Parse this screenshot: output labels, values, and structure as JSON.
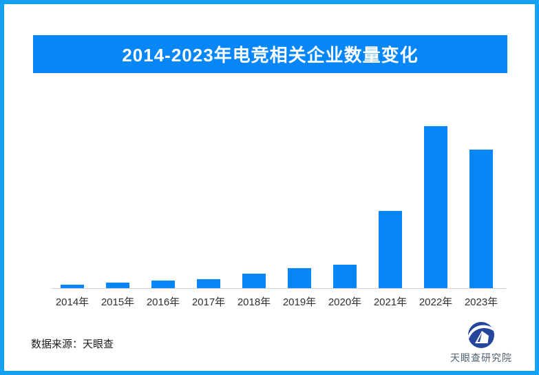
{
  "page": {
    "background": "#ffffff",
    "border_color": "#14a1f2"
  },
  "header": {
    "title": "2014-2023年电竞相关企业数量变化",
    "banner_color": "#0787f7",
    "title_color": "#ffffff"
  },
  "chart_data": {
    "type": "bar",
    "title": "2014-2023年电竞相关企业数量变化",
    "categories": [
      "2014年",
      "2015年",
      "2016年",
      "2017年",
      "2018年",
      "2019年",
      "2020年",
      "2021年",
      "2022年",
      "2023年"
    ],
    "values": [
      2.1,
      3.4,
      4.7,
      5.5,
      8.9,
      12.3,
      14.5,
      47.7,
      100,
      85.5
    ],
    "ylim": [
      0,
      100
    ],
    "xlabel": "",
    "ylabel": "",
    "value_axis_visible": false,
    "value_labels_visible": false,
    "gridlines": false,
    "legend": "none",
    "bar_color": "#0787f7",
    "axis_line_color": "#d0d0d0"
  },
  "footer": {
    "source_label": "数据来源：天眼查",
    "logo_text": "天眼查研究院",
    "logo_color": "#24459c"
  }
}
